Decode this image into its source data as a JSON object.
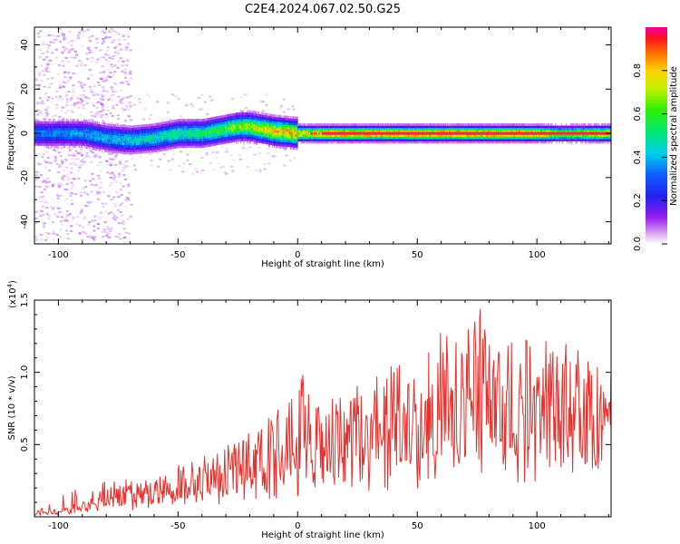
{
  "title": "C2E4.2024.067.02.50.G25",
  "colors": {
    "snr_line": "#e8302c",
    "ridge_core": "#e8302c",
    "background": "#ffffff",
    "axis": "#000000"
  },
  "chart_data": [
    {
      "type": "heatmap",
      "name": "spectrogram",
      "xlabel": "Height of straight line (km)",
      "ylabel": "Frequency (Hz)",
      "xlim": [
        -110,
        131
      ],
      "ylim": [
        -50,
        48
      ],
      "xticks": [
        -100,
        -50,
        0,
        50,
        100
      ],
      "xtick_labels": [
        "-100",
        "-50",
        "0",
        "50",
        "100"
      ],
      "yticks": [
        -40,
        -20,
        0,
        20,
        40
      ],
      "ytick_labels": [
        "-40",
        "-20",
        "0",
        "20",
        "40"
      ],
      "colorbar": {
        "label": "Normalized spectral amplitude",
        "range": [
          0,
          1
        ],
        "ticks": [
          0.0,
          0.2,
          0.4,
          0.6,
          0.8
        ],
        "tick_labels": [
          "0.0",
          "0.2",
          "0.4",
          "0.6",
          "0.8"
        ],
        "colormap": "rainbow (magenta to red)"
      },
      "ridge_frequency": {
        "x": [
          -110,
          -100,
          -90,
          -80,
          -70,
          -60,
          -50,
          -40,
          -30,
          -25,
          -20,
          -10,
          0,
          10,
          20,
          40,
          60,
          80,
          100,
          120,
          131
        ],
        "y": [
          0,
          0,
          0,
          -2,
          -3,
          -2,
          0,
          0,
          2,
          3,
          3,
          1,
          0,
          0,
          0,
          0,
          0,
          0,
          0,
          0,
          0
        ]
      },
      "ridge_peak_amplitude": {
        "x": [
          -110,
          -90,
          -60,
          -40,
          -20,
          -10,
          0,
          10,
          20,
          40,
          60,
          80,
          100,
          110,
          131
        ],
        "y": [
          0.35,
          0.4,
          0.5,
          0.55,
          0.75,
          0.85,
          0.85,
          0.9,
          0.95,
          0.95,
          0.95,
          0.95,
          0.95,
          0.7,
          0.9
        ]
      }
    },
    {
      "type": "line",
      "name": "snr",
      "xlabel": "Height of straight line (km)",
      "ylabel": "SNR (10 * v/v)",
      "multiplier_label": "(x10",
      "multiplier_exponent": "4",
      "multiplier_close": ")",
      "xlim": [
        -110,
        131
      ],
      "ylim": [
        0,
        15000
      ],
      "xticks": [
        -100,
        -50,
        0,
        50,
        100
      ],
      "xtick_labels": [
        "-100",
        "-50",
        "0",
        "50",
        "100"
      ],
      "yticks": [
        5000,
        10000,
        15000
      ],
      "ytick_labels": [
        "0.5",
        "1.0",
        "1.5"
      ],
      "series": [
        {
          "x": [
            -110,
            -105,
            -100,
            -95,
            -90,
            -85,
            -80,
            -75,
            -70,
            -65,
            -60,
            -55,
            -50,
            -45,
            -40,
            -35,
            -30,
            -25,
            -20,
            -15,
            -10,
            -5,
            0,
            5,
            10,
            15,
            20,
            25,
            30,
            35,
            40,
            45,
            50,
            55,
            60,
            65,
            70,
            75,
            80,
            85,
            90,
            95,
            100,
            105,
            110,
            115,
            120,
            125,
            131
          ],
          "y": [
            200,
            350,
            500,
            700,
            900,
            1100,
            1300,
            1500,
            1600,
            1800,
            1900,
            2100,
            2300,
            2600,
            2900,
            3200,
            3500,
            3700,
            4000,
            4300,
            4700,
            5000,
            5500,
            5800,
            5700,
            5500,
            6000,
            6300,
            6600,
            7100,
            7400,
            7100,
            7400,
            7900,
            8300,
            8500,
            8500,
            8700,
            8900,
            8600,
            8300,
            8100,
            8200,
            8400,
            8200,
            7600,
            7500,
            7300,
            7600
          ],
          "envelope_y": [
            400,
            800,
            1400,
            2000,
            2200,
            2500,
            2600,
            2700,
            2600,
            2800,
            2500,
            3200,
            3600,
            4000,
            4600,
            5000,
            5400,
            5800,
            6000,
            6300,
            7800,
            8800,
            10800,
            9000,
            9200,
            8400,
            8700,
            9500,
            9200,
            10700,
            10400,
            10700,
            12700,
            11600,
            13000,
            12000,
            13500,
            15300,
            12200,
            13000,
            12000,
            12700,
            12000,
            12500,
            12700,
            12000,
            11000,
            11600,
            10500
          ]
        }
      ]
    }
  ]
}
